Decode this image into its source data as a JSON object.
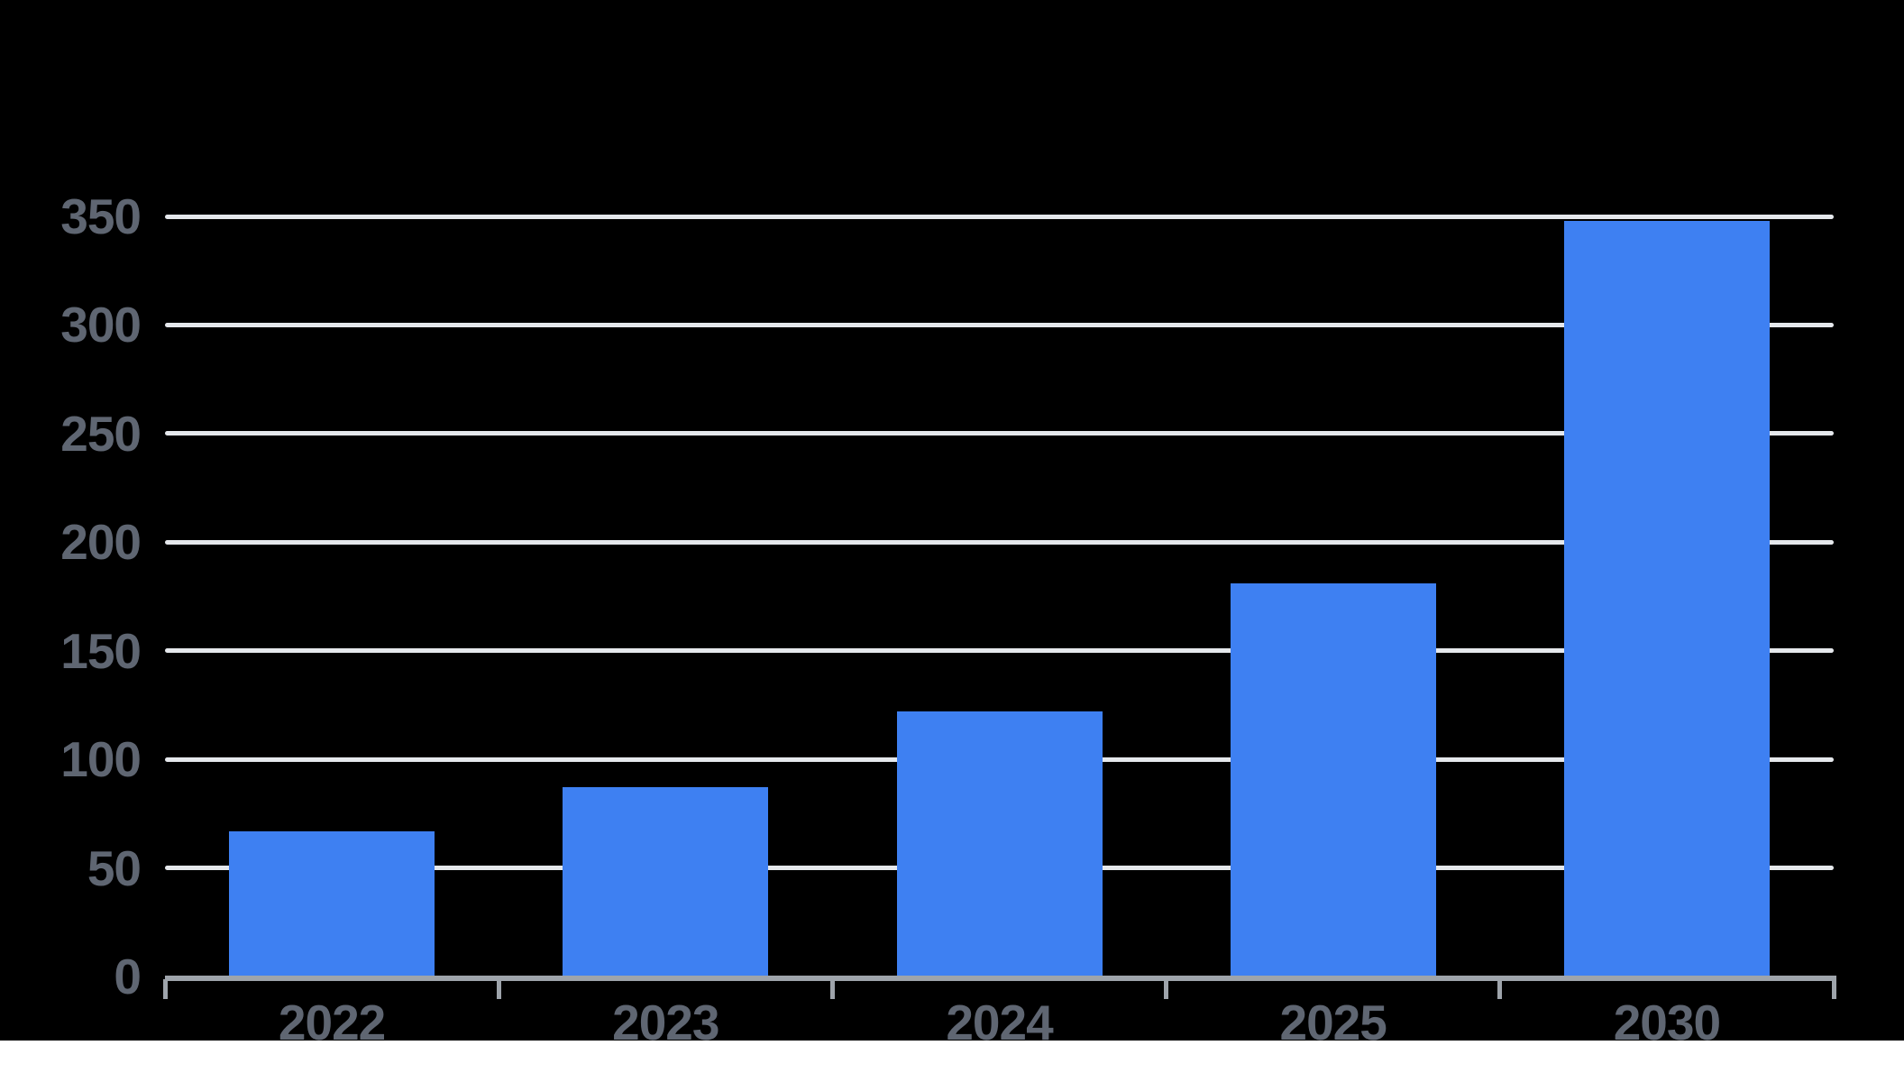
{
  "page": {
    "background_color": "#000000",
    "bottom_strip_color": "#ffffff"
  },
  "chart_data": {
    "type": "bar",
    "title": "",
    "categories": [
      "2022",
      "2023",
      "2024",
      "2025",
      "2030"
    ],
    "values": [
      67,
      87,
      122,
      181,
      348
    ],
    "xlabel": "",
    "ylabel": "",
    "ylim": [
      0,
      350
    ],
    "ytick_step": 50,
    "yticks": [
      0,
      50,
      100,
      150,
      200,
      250,
      300,
      350
    ],
    "grid": true,
    "legend": false,
    "bar_color": "#3e80f2",
    "gridline_color": "#e5e8ec",
    "axis_color": "#9ea4ab",
    "label_color": "#5f6672"
  }
}
